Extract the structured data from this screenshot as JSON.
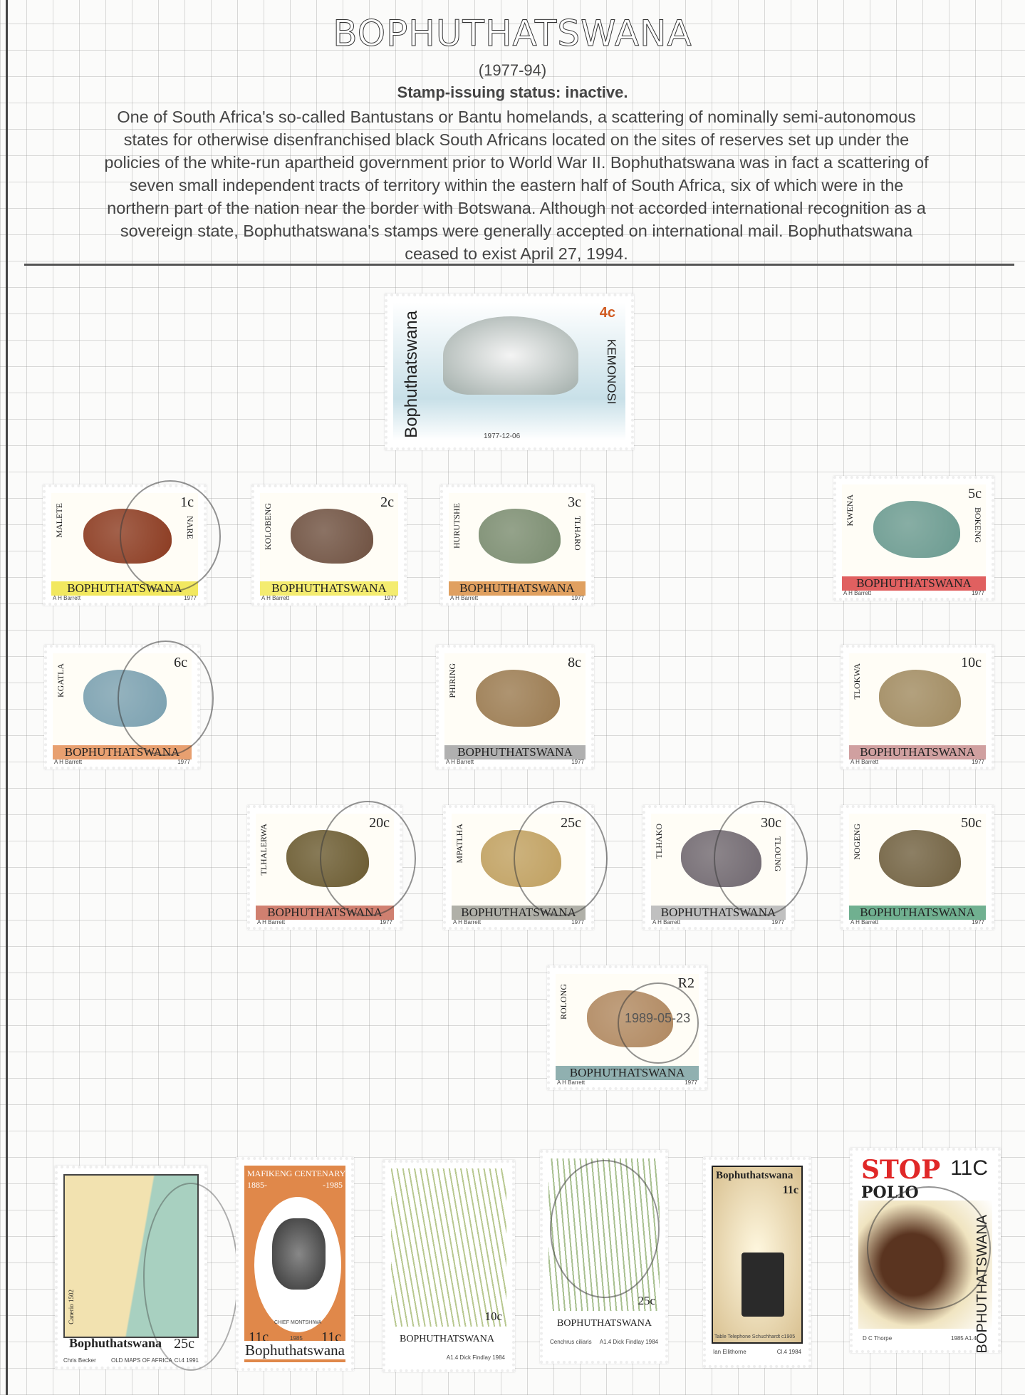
{
  "header": {
    "title": "BOPHUTHATSWANA",
    "years": "(1977-94)",
    "status": "Stamp-issuing status: inactive.",
    "description_lines": [
      "One of South Africa's so-called Bantustans or Bantu homelands, a scattering of nominally semi-autonomous",
      "states for otherwise disenfranchised black South Africans located on the sites of reserves set up under the",
      "policies of the white-run apartheid government prior to World War II. Bophuthatswana was in fact a scattering of",
      "seven small independent tracts of territory within the eastern half of South Africa, six of which were in the",
      "northern part of the nation near the border with Botswana. Although not accorded international recognition as a",
      "sovereign state, Bophuthatswana's stamps were generally accepted on international mail. Bophuthatswana",
      "ceased to exist April 27, 1994."
    ]
  },
  "stamps": {
    "dove": {
      "country": "Bophuthatswana",
      "value": "4c",
      "name": "KEMONOSI",
      "date": "1977-12-06",
      "color": "#c8e0e8"
    },
    "animals": [
      {
        "value": "1c",
        "name": "MALETE",
        "name2": "NARE",
        "country": "BOPHUTHATSWANA",
        "band": "#f2e860",
        "art": "#8b3a20",
        "credit": "A H Barrett",
        "year": "1977"
      },
      {
        "value": "2c",
        "name": "KOLOBENG",
        "country": "BOPHUTHATSWANA",
        "band": "#f4ec70",
        "art": "#6e5040",
        "credit": "A H Barrett",
        "year": "1977"
      },
      {
        "value": "3c",
        "name": "HURUTSHE",
        "name2": "TLHARO",
        "country": "BOPHUTHATSWANA",
        "band": "#e0a060",
        "art": "#7a8c70",
        "credit": "A H Barrett",
        "year": "1977"
      },
      {
        "value": "5c",
        "name": "KWENA",
        "name2": "BOKENG",
        "country": "BOPHUTHATSWANA",
        "band": "#e06060",
        "art": "#6a9a90",
        "credit": "A H Barrett",
        "year": "1977"
      },
      {
        "value": "6c",
        "name": "KGATLA",
        "country": "BOPHUTHATSWANA",
        "band": "#e8a070",
        "art": "#7aa0b0",
        "credit": "A H Barrett",
        "year": "1977"
      },
      {
        "value": "8c",
        "name": "PHIRING",
        "country": "BOPHUTHATSWANA",
        "band": "#b0b0b0",
        "art": "#9a7a50",
        "credit": "A H Barrett",
        "year": "1977"
      },
      {
        "value": "10c",
        "name": "TLOKWA",
        "country": "BOPHUTHATSWANA",
        "band": "#d0a0a0",
        "art": "#a08a60",
        "credit": "A H Barrett",
        "year": "1977"
      },
      {
        "value": "20c",
        "name": "TLHALERWA",
        "country": "BOPHUTHATSWANA",
        "band": "#d08070",
        "art": "#6a5a30",
        "credit": "A H Barrett",
        "year": "1977"
      },
      {
        "value": "25c",
        "name": "MPATLHA",
        "country": "BOPHUTHATSWANA",
        "band": "#b0b0a8",
        "art": "#c0a060",
        "credit": "A H Barrett",
        "year": "1977"
      },
      {
        "value": "30c",
        "name": "TLHAKO",
        "name2": "TLOUNG",
        "country": "BOPHUTHATSWANA",
        "band": "#c0c0c0",
        "art": "#706870",
        "credit": "A H Barrett",
        "year": "1977"
      },
      {
        "value": "50c",
        "name": "NOGENG",
        "country": "BOPHUTHATSWANA",
        "band": "#70b090",
        "art": "#706040",
        "credit": "A H Barrett",
        "year": "1977"
      },
      {
        "value": "R2",
        "name": "ROLONG",
        "country": "BOPHUTHATSWANA",
        "band": "#90b0b0",
        "art": "#b08860",
        "credit": "A H Barrett",
        "year": "1977"
      }
    ],
    "cancel_date": "1989-05-23",
    "map": {
      "country": "Bophuthatswana",
      "value": "25c",
      "series": "OLD MAPS OF AFRICA",
      "designer": "Chris Becker",
      "caption": "Canerio 1502",
      "printer": "Cl.4 1991"
    },
    "mafikeng": {
      "title": "MAFIKENG CENTENARY",
      "from": "1885-",
      "to": "-1985",
      "value": "11c",
      "country": "Bophuthatswana",
      "caption": "CHIEF MONTSHIWA",
      "year": "1985"
    },
    "grass1": {
      "country": "BOPHUTHATSWANA",
      "value": "10c",
      "credit": "A1.4 Dick Findlay 1984"
    },
    "grass2": {
      "country": "BOPHUTHATSWANA",
      "value": "25c",
      "species": "Cenchrus ciliaris",
      "credit": "A1.4 Dick Findlay 1984"
    },
    "phone": {
      "country": "Bophuthatswana",
      "value": "11c",
      "caption": "Table Telephone Schuchhardt c1905",
      "designer": "Ian Ellithorne",
      "printer": "Cl.4 1984"
    },
    "polio": {
      "stop": "STOP",
      "polio": "POLIO",
      "value": "11C",
      "country": "BOPHUTHATSWANA",
      "designer": "D C Thorpe",
      "printer": "1985 A1.4"
    }
  }
}
